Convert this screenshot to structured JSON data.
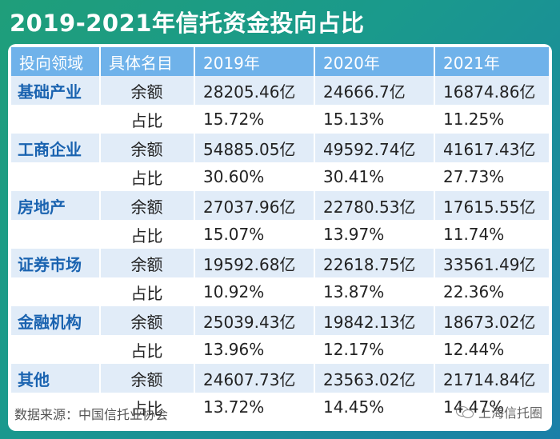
{
  "title": "2019-2021年信托资金投向占比",
  "chart_data": {
    "type": "table",
    "title": "2019-2021年信托资金投向占比",
    "columns": [
      "投向领域",
      "具体名目",
      "2019年",
      "2020年",
      "2021年"
    ],
    "rows": [
      [
        "基础产业",
        "余额",
        "28205.46亿",
        "24666.7亿",
        "16874.86亿"
      ],
      [
        "",
        "占比",
        "15.72%",
        "15.13%",
        "11.25%"
      ],
      [
        "工商企业",
        "余额",
        "54885.05亿",
        "49592.74亿",
        "41617.43亿"
      ],
      [
        "",
        "占比",
        "30.60%",
        "30.41%",
        "27.73%"
      ],
      [
        "房地产",
        "余额",
        "27037.96亿",
        "22780.53亿",
        "17615.55亿"
      ],
      [
        "",
        "占比",
        "15.07%",
        "13.97%",
        "11.74%"
      ],
      [
        "证券市场",
        "余额",
        "19592.68亿",
        "22618.75亿",
        "33561.49亿"
      ],
      [
        "",
        "占比",
        "10.92%",
        "13.87%",
        "22.36%"
      ],
      [
        "金融机构",
        "余额",
        "25039.43亿",
        "19842.13亿",
        "18673.02亿"
      ],
      [
        "",
        "占比",
        "13.96%",
        "12.17%",
        "12.44%"
      ],
      [
        "其他",
        "余额",
        "24607.73亿",
        "23563.02亿",
        "21714.84亿"
      ],
      [
        "",
        "占比",
        "13.72%",
        "14.45%",
        "14.47%"
      ]
    ]
  },
  "footer": {
    "source": "数据来源：中国信托业协会",
    "brand": "上海信托圈",
    "brand_icon": "wechat-icon"
  },
  "colors": {
    "header_bg": "#6fb2ea",
    "row_shade": "#e1ecf8",
    "domain_text": "#1a63b0",
    "background_start": "#1f9e7a",
    "background_end": "#1b7fa8"
  }
}
